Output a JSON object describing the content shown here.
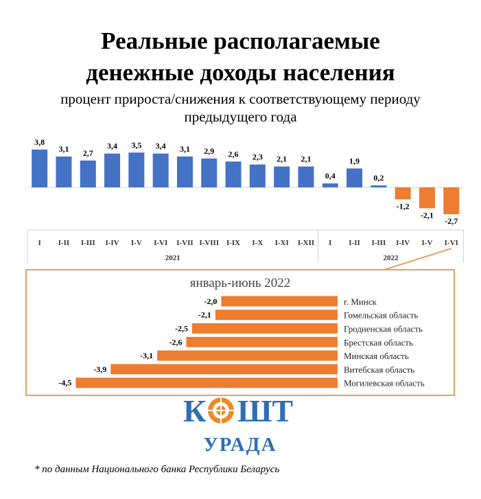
{
  "title": {
    "line1": "Реальные располагаемые",
    "line2": "денежные доходы населения",
    "subtitle_line1": "процент прироста/снижения к соответствующему периоду",
    "subtitle_line2": "предыдущего года"
  },
  "colors": {
    "positive": "#4472c4",
    "negative": "#ed7d31",
    "box_border": "#e3a060"
  },
  "chart_data": [
    {
      "type": "bar",
      "title": "",
      "categories": [
        "I",
        "I-II",
        "I-III",
        "I-IV",
        "I-V",
        "I-VI",
        "I-VII",
        "I-VIII",
        "I-IX",
        "I-X",
        "I-XI",
        "I-XII",
        "I",
        "I-II",
        "I-III",
        "I-IV",
        "I-V",
        "I-VI"
      ],
      "category_groups": [
        {
          "label": "2021",
          "count": 12
        },
        {
          "label": "2022",
          "count": 6
        }
      ],
      "values": [
        3.8,
        3.1,
        2.7,
        3.4,
        3.5,
        3.4,
        3.1,
        2.9,
        2.6,
        2.3,
        2.1,
        2.1,
        0.4,
        1.9,
        0.2,
        -1.2,
        -2.1,
        -2.7
      ],
      "value_labels": [
        "3,8",
        "3,1",
        "2,7",
        "3,4",
        "3,5",
        "3,4",
        "3,1",
        "2,9",
        "2,6",
        "2,3",
        "2,1",
        "2,1",
        "0,4",
        "1,9",
        "0,2",
        "-1,2",
        "-2,1",
        "-2,7"
      ]
    },
    {
      "type": "bar",
      "orientation": "horizontal",
      "title": "январь-июнь 2022",
      "categories": [
        "г. Минск",
        "Гомельская область",
        "Гродненская область",
        "Брестская область",
        "Минская область",
        "Витебская область",
        "Могилевская область"
      ],
      "values": [
        -2.0,
        -2.1,
        -2.5,
        -2.6,
        -3.1,
        -3.9,
        -4.5
      ],
      "value_labels": [
        "-2,0",
        "-2,1",
        "-2,5",
        "-2,6",
        "-3,1",
        "-3,9",
        "-4,5"
      ]
    }
  ],
  "logo": {
    "line1": "КОШТ",
    "line2": "УРАДА"
  },
  "footnote": "* по данным Национального банка Республики Беларусь"
}
